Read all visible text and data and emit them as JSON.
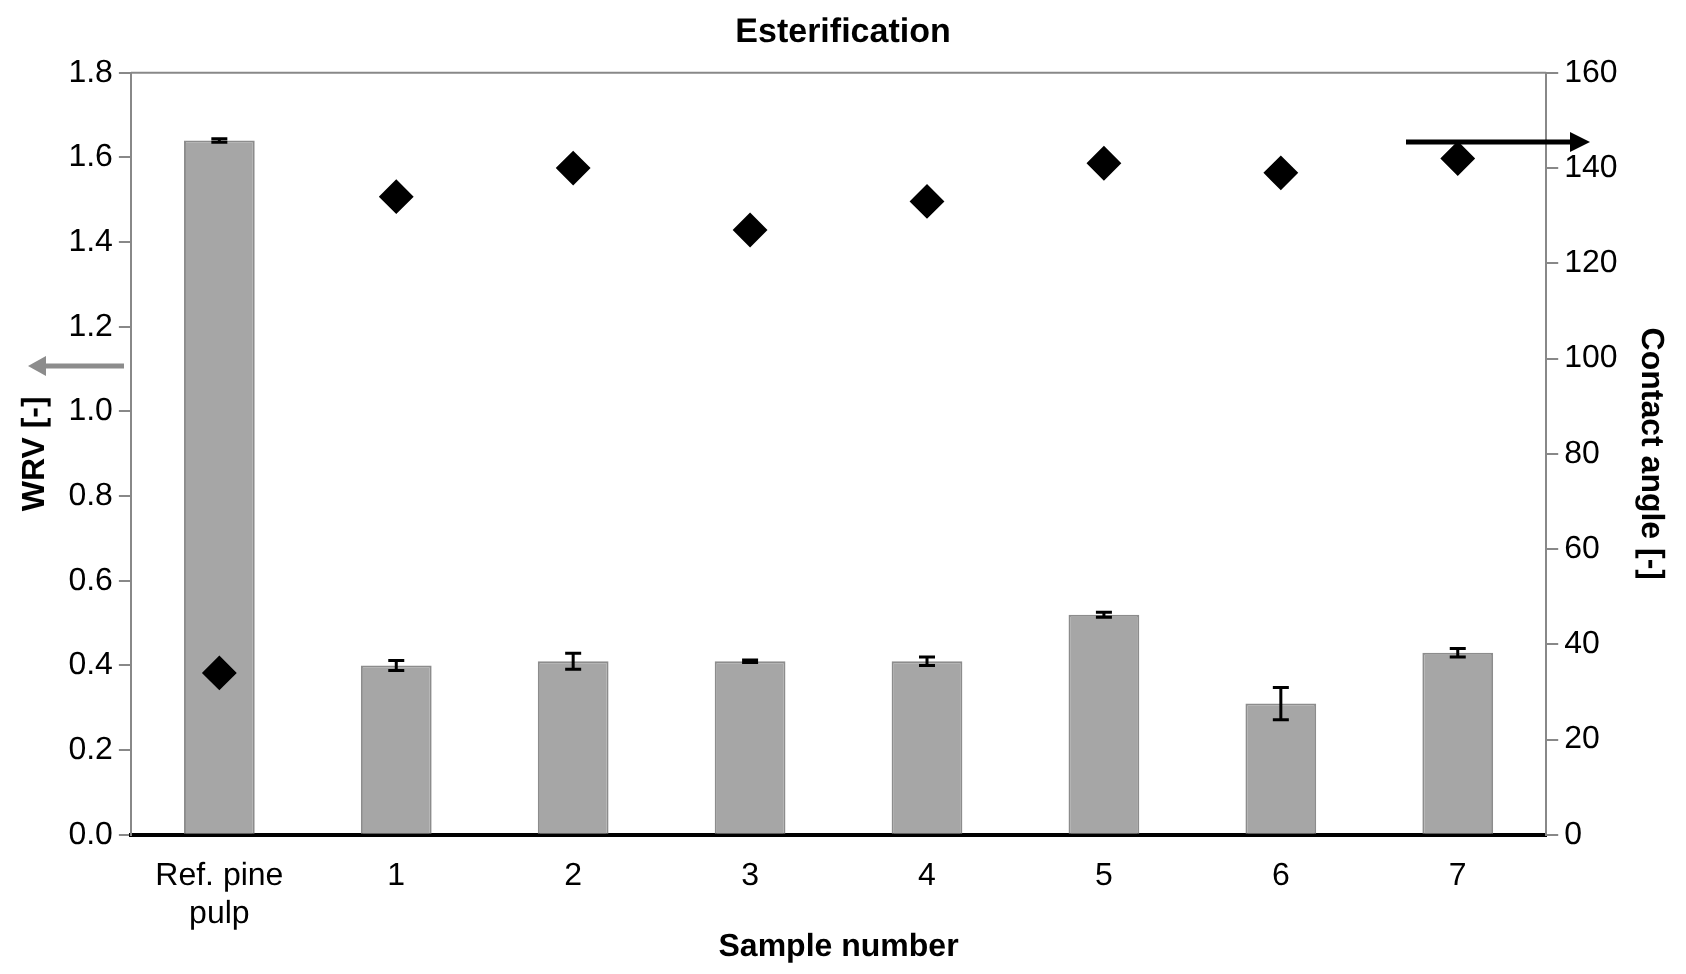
{
  "chart_data": {
    "type": "bar",
    "title": "Esterification",
    "xlabel": "Sample number",
    "ylabel": "WRV [-]",
    "y2label": "Contact angle [-]",
    "categories": [
      "Ref. pine pulp",
      "1",
      "2",
      "3",
      "4",
      "5",
      "6",
      "7"
    ],
    "series": [
      {
        "color": "#a6a6a6",
        "values": [
          1.64,
          0.4,
          0.41,
          0.41,
          0.41,
          0.52,
          0.31,
          0.43
        ],
        "errors": [
          0.004,
          0.012,
          0.019,
          0.003,
          0.01,
          0.006,
          0.038,
          0.01
        ]
      },
      {
        "type": "scatter",
        "axis": "y2",
        "color": "#000000",
        "x": [
          "Ref. pine pulp",
          "1",
          "2",
          "3",
          "4",
          "5",
          "6",
          "7"
        ],
        "values": [
          34,
          134,
          140,
          127,
          133,
          141,
          139,
          142
        ]
      }
    ],
    "ylim": [
      0,
      1.8
    ],
    "yticks": [
      {
        "value": 0,
        "label": "0.0"
      },
      {
        "value": 0.2,
        "label": "0.2"
      },
      {
        "value": 0.4,
        "label": "0.4"
      },
      {
        "value": 0.6,
        "label": "0.6"
      },
      {
        "value": 0.8,
        "label": "0.8"
      },
      {
        "value": 1,
        "label": "1.0"
      },
      {
        "value": 1.2,
        "label": "1.2"
      },
      {
        "value": 1.4,
        "label": "1.4"
      },
      {
        "value": 1.6,
        "label": "1.6"
      },
      {
        "value": 1.8,
        "label": "1.8"
      }
    ],
    "y2lim": [
      0,
      160
    ],
    "y2ticks": [
      0,
      20,
      40,
      60,
      80,
      100,
      120,
      140,
      160
    ],
    "grid": false,
    "legend": false,
    "marker": "diamond"
  }
}
